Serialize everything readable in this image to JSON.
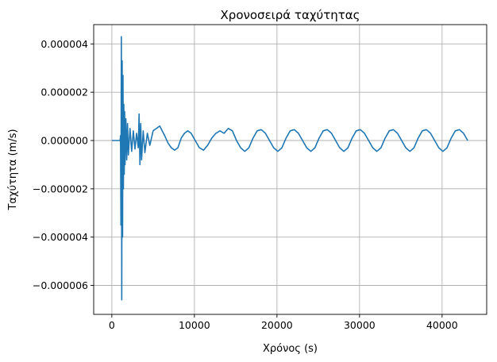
{
  "chart_data": {
    "type": "line",
    "title": "Χρονοσειρά ταχύτητας",
    "xlabel": "Χρόνος (s)",
    "ylabel": "Ταχύτητα (m/s)",
    "xlim": [
      -2200,
      45400
    ],
    "ylim": [
      -7.2e-06,
      4.8e-06
    ],
    "grid": true,
    "line_color": "#1f77b4",
    "x_ticks": [
      {
        "value": 0,
        "label": "0"
      },
      {
        "value": 10000,
        "label": "10000"
      },
      {
        "value": 20000,
        "label": "20000"
      },
      {
        "value": 30000,
        "label": "30000"
      },
      {
        "value": 40000,
        "label": "40000"
      }
    ],
    "y_ticks": [
      {
        "value": 4e-06,
        "label": "0.000004"
      },
      {
        "value": 2e-06,
        "label": "0.000002"
      },
      {
        "value": 0,
        "label": "0.000000"
      },
      {
        "value": -2e-06,
        "label": "−0.000002"
      },
      {
        "value": -4e-06,
        "label": "−0.000004"
      },
      {
        "value": -6e-06,
        "label": "−0.000006"
      }
    ],
    "series": [
      {
        "values_x": [
          0,
          1000,
          1050,
          1100,
          1150,
          1200,
          1250,
          1300,
          1350,
          1400,
          1450,
          1500,
          1550,
          1600,
          1700,
          1800,
          1900,
          2000,
          2200,
          2400,
          2600,
          2800,
          3000,
          3200,
          3300,
          3400,
          3500,
          3600,
          3800,
          4000,
          4300,
          4600,
          5000,
          5400,
          5800,
          6100,
          6400,
          6800,
          7200,
          7600,
          8000,
          8400,
          8800,
          9200,
          9600,
          10100,
          10600,
          11100,
          11600,
          12100,
          12600,
          13100,
          13600,
          14100,
          14600,
          15100,
          15600,
          16100,
          16600,
          17100,
          17600,
          18100,
          18600,
          19100,
          19600,
          20100,
          20600,
          21100,
          21600,
          22100,
          22600,
          23100,
          23600,
          24100,
          24600,
          25100,
          25600,
          26100,
          26600,
          27100,
          27600,
          28100,
          28600,
          29100,
          29600,
          30100,
          30600,
          31100,
          31600,
          32100,
          32600,
          33100,
          33600,
          34100,
          34600,
          35100,
          35600,
          36100,
          36600,
          37100,
          37600,
          38100,
          38600,
          39100,
          39600,
          40100,
          40600,
          41100,
          41600,
          42100,
          42600,
          43100
        ],
        "values_y": [
          0,
          0,
          2e-07,
          -3.5e-06,
          4.3e-06,
          -6.6e-06,
          3.3e-06,
          -4e-06,
          2.7e-06,
          -2e-06,
          1.5e-06,
          -1.4e-06,
          1.2e-06,
          -1e-06,
          9e-07,
          -8e-07,
          7e-07,
          -6e-07,
          5e-07,
          -4.5e-07,
          4e-07,
          -3.5e-07,
          3e-07,
          -3e-07,
          1.1e-06,
          -1e-06,
          7e-07,
          -8e-07,
          4e-07,
          -5e-07,
          3e-07,
          -2e-07,
          4e-07,
          5e-07,
          6e-07,
          4e-07,
          2e-07,
          -1e-07,
          -3e-07,
          -4e-07,
          -3e-07,
          1e-07,
          3e-07,
          4e-07,
          3e-07,
          0,
          -3e-07,
          -4e-07,
          -2e-07,
          1e-07,
          3e-07,
          4e-07,
          3e-07,
          5e-07,
          4e-07,
          0,
          -3e-07,
          -4.5e-07,
          -3e-07,
          1e-07,
          4e-07,
          4.5e-07,
          3e-07,
          0,
          -3e-07,
          -4.5e-07,
          -3e-07,
          1e-07,
          4e-07,
          4.5e-07,
          3e-07,
          0,
          -3e-07,
          -4.5e-07,
          -3e-07,
          1e-07,
          4e-07,
          4.5e-07,
          3e-07,
          0,
          -3e-07,
          -4.5e-07,
          -3e-07,
          1e-07,
          4e-07,
          4.5e-07,
          3e-07,
          0,
          -3e-07,
          -4.5e-07,
          -3e-07,
          1e-07,
          4e-07,
          4.5e-07,
          3e-07,
          0,
          -3e-07,
          -4.5e-07,
          -3e-07,
          1e-07,
          4e-07,
          4.5e-07,
          3e-07,
          0,
          -3e-07,
          -4.5e-07,
          -3e-07,
          1e-07,
          4e-07,
          4.5e-07,
          3e-07,
          0
        ]
      }
    ]
  }
}
